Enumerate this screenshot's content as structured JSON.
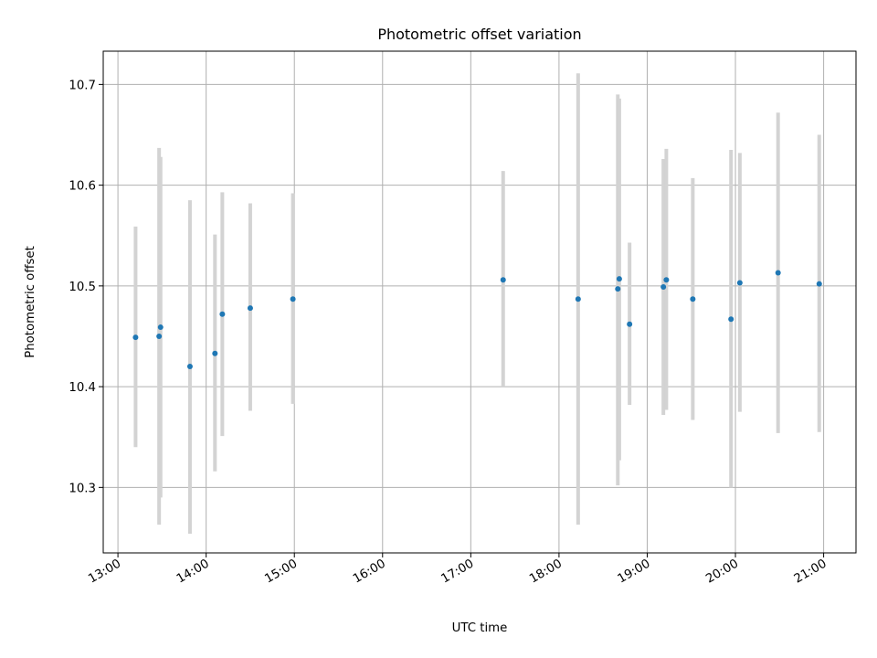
{
  "chart_data": {
    "type": "scatter",
    "title": "Photometric offset variation",
    "xlabel": "UTC time",
    "ylabel": "Photometric offset",
    "x_ticks": [
      "13:00",
      "14:00",
      "15:00",
      "16:00",
      "17:00",
      "18:00",
      "19:00",
      "20:00",
      "21:00"
    ],
    "y_ticks": [
      "10.3",
      "10.4",
      "10.5",
      "10.6",
      "10.7"
    ],
    "xlim": [
      "12:50",
      "21:22"
    ],
    "ylim": [
      10.235,
      10.733
    ],
    "grid": true,
    "errorbar_color": "#d3d3d3",
    "marker_color": "#1f77b4",
    "points": [
      {
        "x": "13:12",
        "y": 10.449,
        "err_low": 10.34,
        "err_high": 10.559
      },
      {
        "x": "13:28",
        "y": 10.45,
        "err_low": 10.263,
        "err_high": 10.637
      },
      {
        "x": "13:29",
        "y": 10.459,
        "err_low": 10.29,
        "err_high": 10.628
      },
      {
        "x": "13:49",
        "y": 10.42,
        "err_low": 10.254,
        "err_high": 10.585
      },
      {
        "x": "14:06",
        "y": 10.433,
        "err_low": 10.316,
        "err_high": 10.551
      },
      {
        "x": "14:11",
        "y": 10.472,
        "err_low": 10.351,
        "err_high": 10.593
      },
      {
        "x": "14:30",
        "y": 10.478,
        "err_low": 10.376,
        "err_high": 10.582
      },
      {
        "x": "14:59",
        "y": 10.487,
        "err_low": 10.383,
        "err_high": 10.592
      },
      {
        "x": "17:22",
        "y": 10.506,
        "err_low": 10.4,
        "err_high": 10.614
      },
      {
        "x": "18:13",
        "y": 10.487,
        "err_low": 10.263,
        "err_high": 10.711
      },
      {
        "x": "18:40",
        "y": 10.497,
        "err_low": 10.302,
        "err_high": 10.69
      },
      {
        "x": "18:41",
        "y": 10.507,
        "err_low": 10.327,
        "err_high": 10.686
      },
      {
        "x": "18:48",
        "y": 10.462,
        "err_low": 10.382,
        "err_high": 10.543
      },
      {
        "x": "19:11",
        "y": 10.499,
        "err_low": 10.372,
        "err_high": 10.626
      },
      {
        "x": "19:13",
        "y": 10.506,
        "err_low": 10.377,
        "err_high": 10.636
      },
      {
        "x": "19:31",
        "y": 10.487,
        "err_low": 10.367,
        "err_high": 10.607
      },
      {
        "x": "19:57",
        "y": 10.467,
        "err_low": 10.3,
        "err_high": 10.635
      },
      {
        "x": "20:03",
        "y": 10.503,
        "err_low": 10.375,
        "err_high": 10.632
      },
      {
        "x": "20:29",
        "y": 10.513,
        "err_low": 10.354,
        "err_high": 10.672
      },
      {
        "x": "20:57",
        "y": 10.502,
        "err_low": 10.355,
        "err_high": 10.65
      }
    ]
  }
}
